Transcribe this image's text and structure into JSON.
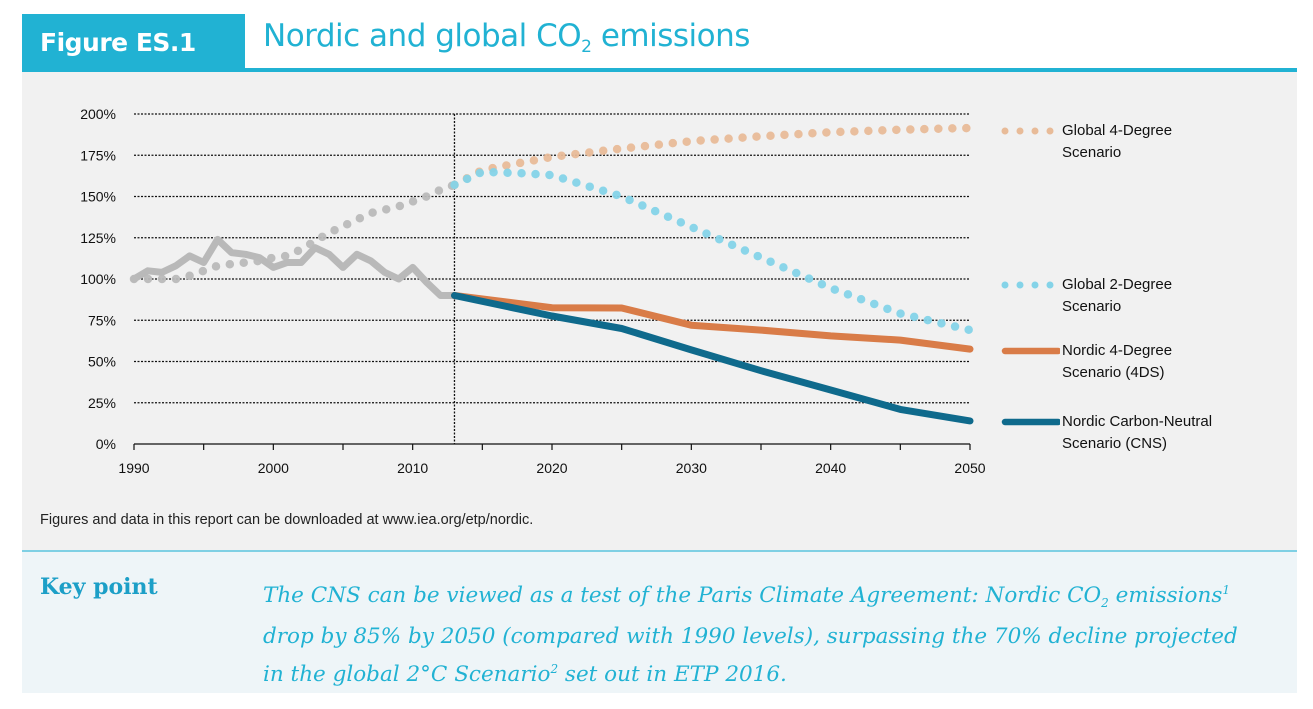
{
  "header": {
    "figure_label": "Figure ES.1",
    "title_main": "Nordic and global CO",
    "title_sub": "2",
    "title_end": " emissions"
  },
  "note": "Figures and data in this report can be downloaded at www.iea.org/etp/nordic.",
  "key_point": {
    "label": "Key point",
    "parts": [
      {
        "t": "The CNS can be viewed as a test of the Paris Climate Agreement: Nordic CO",
        "s": ""
      },
      {
        "t": "2",
        "s": "sub"
      },
      {
        "t": " emissions",
        "s": ""
      },
      {
        "t": "1",
        "s": "sup"
      },
      {
        "t": " drop by 85% by 2050 (compared with 1990 levels), surpassing the 70% decline projected in the global 2°C Scenario",
        "s": ""
      },
      {
        "t": "2",
        "s": "sup"
      },
      {
        "t": " set out in ETP 2016.",
        "s": ""
      }
    ]
  },
  "colors": {
    "accent": "#21b2d3",
    "historical": "#b9b9b9",
    "global_4ds": "#e8bb98",
    "global_2ds": "#84d3e8",
    "nordic_4ds": "#d97c48",
    "nordic_cns": "#0f6a8c"
  },
  "chart_data": {
    "type": "line",
    "title": "Nordic and global CO2 emissions",
    "xlabel": "",
    "ylabel": "",
    "xlim": [
      1990,
      2050
    ],
    "ylim": [
      0,
      200
    ],
    "x_ticks": [
      "1990",
      "2000",
      "2010",
      "2020",
      "2030",
      "2040",
      "2050"
    ],
    "y_ticks": [
      "0%",
      "25%",
      "50%",
      "75%",
      "100%",
      "125%",
      "150%",
      "175%",
      "200%"
    ],
    "y_tick_values": [
      0,
      25,
      50,
      75,
      100,
      125,
      150,
      175,
      200
    ],
    "grid": "horizontal dotted",
    "reference_line_x": 2013,
    "legend_position": "right",
    "series": [
      {
        "style": "solid",
        "color": "#b9b9b9",
        "points": [
          [
            1990,
            100
          ],
          [
            1991,
            105
          ],
          [
            1992,
            104
          ],
          [
            1993,
            108
          ],
          [
            1994,
            114
          ],
          [
            1995,
            110
          ],
          [
            1996,
            124
          ],
          [
            1997,
            116
          ],
          [
            1998,
            115
          ],
          [
            1999,
            113
          ],
          [
            2000,
            107
          ],
          [
            2001,
            110
          ],
          [
            2002,
            110
          ],
          [
            2003,
            119
          ],
          [
            2004,
            115
          ],
          [
            2005,
            107
          ],
          [
            2006,
            115
          ],
          [
            2007,
            111
          ],
          [
            2008,
            104
          ],
          [
            2009,
            100
          ],
          [
            2010,
            107
          ],
          [
            2011,
            98
          ],
          [
            2012,
            90
          ],
          [
            2013,
            90
          ]
        ]
      },
      {
        "style": "dotted",
        "color": "#b9b9b9",
        "points": [
          [
            1990,
            100
          ],
          [
            1992,
            100
          ],
          [
            1993,
            100
          ],
          [
            1994,
            102
          ],
          [
            1995,
            105
          ],
          [
            1996,
            108
          ],
          [
            1997,
            109
          ],
          [
            1998,
            110
          ],
          [
            1999,
            111
          ],
          [
            2000,
            113
          ],
          [
            2001,
            114
          ],
          [
            2002,
            118
          ],
          [
            2003,
            123
          ],
          [
            2004,
            128
          ],
          [
            2005,
            132
          ],
          [
            2006,
            136
          ],
          [
            2007,
            140
          ],
          [
            2008,
            142
          ],
          [
            2009,
            144
          ],
          [
            2010,
            147
          ],
          [
            2011,
            150
          ],
          [
            2012,
            154
          ],
          [
            2013,
            157
          ]
        ]
      },
      {
        "name": "Global 4-Degree Scenario",
        "style": "dotted",
        "color": "#e8bb98",
        "points": [
          [
            2013,
            157
          ],
          [
            2015,
            166
          ],
          [
            2020,
            174
          ],
          [
            2025,
            179
          ],
          [
            2030,
            183.5
          ],
          [
            2035,
            186.5
          ],
          [
            2040,
            189
          ],
          [
            2045,
            190.5
          ],
          [
            2050,
            191.5
          ]
        ]
      },
      {
        "name": "Global 2-Degree Scenario",
        "style": "dotted",
        "color": "#84d3e8",
        "points": [
          [
            2013,
            157
          ],
          [
            2015,
            165
          ],
          [
            2018,
            164
          ],
          [
            2020,
            163
          ],
          [
            2025,
            150
          ],
          [
            2030,
            131.5
          ],
          [
            2035,
            113
          ],
          [
            2040,
            94.5
          ],
          [
            2045,
            79
          ],
          [
            2050,
            69
          ]
        ]
      },
      {
        "name": "Nordic 4-Degree Scenario (4DS)",
        "style": "solid",
        "color": "#d97c48",
        "points": [
          [
            2013,
            90
          ],
          [
            2020,
            82.6
          ],
          [
            2025,
            82.4
          ],
          [
            2030,
            72
          ],
          [
            2035,
            69
          ],
          [
            2040,
            65.5
          ],
          [
            2045,
            63
          ],
          [
            2050,
            57.5
          ]
        ]
      },
      {
        "name": "Nordic Carbon-Neutral Scenario (CNS)",
        "style": "solid",
        "color": "#0f6a8c",
        "points": [
          [
            2013,
            90
          ],
          [
            2020,
            77.6
          ],
          [
            2025,
            70
          ],
          [
            2030,
            57
          ],
          [
            2035,
            44.4
          ],
          [
            2040,
            32.7
          ],
          [
            2045,
            21
          ],
          [
            2050,
            14
          ]
        ]
      }
    ]
  }
}
